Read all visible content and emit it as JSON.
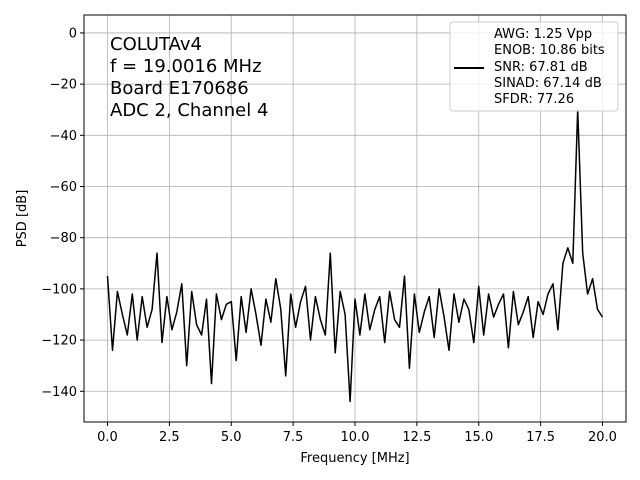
{
  "chart_data": {
    "type": "line",
    "xlabel": "Frequency [MHz]",
    "ylabel": "PSD [dB]",
    "xlim": [
      -0.95,
      20.95
    ],
    "ylim": [
      -152,
      7
    ],
    "xticks": [
      0.0,
      2.5,
      5.0,
      7.5,
      10.0,
      12.5,
      15.0,
      17.5,
      20.0
    ],
    "xtick_labels": [
      "0.0",
      "2.5",
      "5.0",
      "7.5",
      "10.0",
      "12.5",
      "15.0",
      "17.5",
      "20.0"
    ],
    "yticks": [
      0,
      -20,
      -40,
      -60,
      -80,
      -100,
      -120,
      -140
    ],
    "ytick_labels": [
      "0",
      "−20",
      "−40",
      "−60",
      "−80",
      "−100",
      "−120",
      "−140"
    ],
    "grid": true,
    "line_color": "#000000",
    "annotation_lines": [
      "COLUTAv4",
      "f = 19.0016 MHz",
      "Board E170686",
      "ADC 2, Channel 4"
    ],
    "legend": {
      "placement": "top-right",
      "lines": [
        "AWG: 1.25 Vpp",
        "ENOB: 10.86 bits",
        "SNR: 67.81 dB",
        "SINAD: 67.14 dB",
        "SFDR: 77.26"
      ]
    },
    "series": [
      {
        "x": [
          0.0,
          0.2,
          0.4,
          0.6,
          0.8,
          1.0,
          1.2,
          1.4,
          1.6,
          1.8,
          2.0,
          2.2,
          2.4,
          2.6,
          2.8,
          3.0,
          3.2,
          3.4,
          3.6,
          3.8,
          4.0,
          4.2,
          4.4,
          4.6,
          4.8,
          5.0,
          5.2,
          5.4,
          5.6,
          5.8,
          6.0,
          6.2,
          6.4,
          6.6,
          6.8,
          7.0,
          7.2,
          7.4,
          7.6,
          7.8,
          8.0,
          8.2,
          8.4,
          8.6,
          8.8,
          9.0,
          9.2,
          9.4,
          9.6,
          9.8,
          10.0,
          10.2,
          10.4,
          10.6,
          10.8,
          11.0,
          11.2,
          11.4,
          11.6,
          11.8,
          12.0,
          12.2,
          12.4,
          12.6,
          12.8,
          13.0,
          13.2,
          13.4,
          13.6,
          13.8,
          14.0,
          14.2,
          14.4,
          14.6,
          14.8,
          15.0,
          15.2,
          15.4,
          15.6,
          15.8,
          16.0,
          16.2,
          16.4,
          16.6,
          16.8,
          17.0,
          17.2,
          17.4,
          17.6,
          17.8,
          18.0,
          18.2,
          18.4,
          18.6,
          18.8,
          19.0,
          19.2,
          19.4,
          19.6,
          19.8,
          20.0
        ],
        "y": [
          -95,
          -124,
          -101,
          -110,
          -118,
          -102,
          -120,
          -103,
          -115,
          -108,
          -86,
          -121,
          -103,
          -116,
          -109,
          -98,
          -130,
          -101,
          -114,
          -118,
          -104,
          -137,
          -102,
          -112,
          -106,
          -105,
          -128,
          -103,
          -117,
          -100,
          -110,
          -122,
          -104,
          -113,
          -96,
          -108,
          -134,
          -102,
          -115,
          -105,
          -99,
          -120,
          -103,
          -112,
          -118,
          -86,
          -125,
          -101,
          -110,
          -144,
          -104,
          -118,
          -102,
          -116,
          -108,
          -103,
          -121,
          -101,
          -112,
          -115,
          -95,
          -131,
          -102,
          -117,
          -109,
          -103,
          -119,
          -100,
          -111,
          -124,
          -102,
          -113,
          -104,
          -108,
          -121,
          -99,
          -118,
          -102,
          -111,
          -106,
          -102,
          -123,
          -101,
          -114,
          -109,
          -103,
          -119,
          -105,
          -110,
          -102,
          -98,
          -116,
          -90,
          -84,
          -90,
          -30,
          -86,
          -102,
          -96,
          -108,
          -111
        ]
      }
    ]
  }
}
